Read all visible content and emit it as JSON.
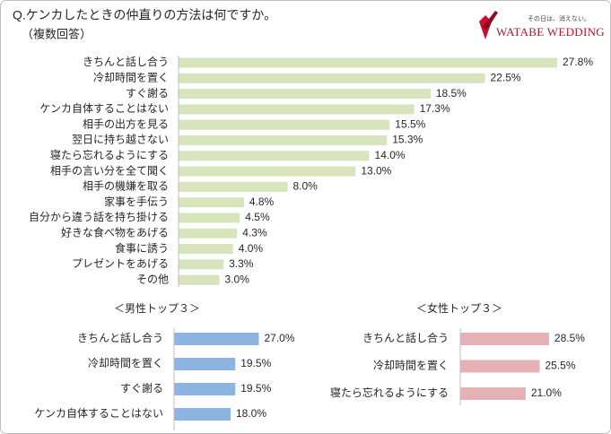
{
  "header": {
    "title": "Q.ケンカしたときの仲直りの方法は何ですか。",
    "subtitle": "（複数回答）",
    "logo_tagline": "その日は、消えない。",
    "logo_brand": "WATABE WEDDING"
  },
  "chart_data": [
    {
      "type": "bar",
      "orientation": "horizontal",
      "color": "#d7e4bc",
      "categories": [
        "きちんと話し合う",
        "冷却時間を置く",
        "すぐ謝る",
        "ケンカ自体することはない",
        "相手の出方を見る",
        "翌日に持ち越さない",
        "寝たら忘れるようにする",
        "相手の言い分を全て聞く",
        "相手の機嫌を取る",
        "家事を手伝う",
        "自分から違う話を持ち掛ける",
        "好きな食べ物をあげる",
        "食事に誘う",
        "プレゼントをあげる",
        "その他"
      ],
      "values": [
        27.8,
        22.5,
        18.5,
        17.3,
        15.5,
        15.3,
        14.0,
        13.0,
        8.0,
        4.8,
        4.5,
        4.3,
        4.0,
        3.3,
        3.0
      ],
      "value_labels": [
        "27.8%",
        "22.5%",
        "18.5%",
        "17.3%",
        "15.5%",
        "15.3%",
        "14.0%",
        "13.0%",
        "8.0%",
        "4.8%",
        "4.5%",
        "4.3%",
        "4.0%",
        "3.3%",
        "3.0%"
      ]
    },
    {
      "type": "bar",
      "orientation": "horizontal",
      "title": "＜男性トップ３＞",
      "color": "#8db3e2",
      "categories": [
        "きちんと話し合う",
        "冷却時間を置く",
        "すぐ謝る",
        "ケンカ自体することはない"
      ],
      "values": [
        27.0,
        19.5,
        19.5,
        18.0
      ],
      "value_labels": [
        "27.0%",
        "19.5%",
        "19.5%",
        "18.0%"
      ]
    },
    {
      "type": "bar",
      "orientation": "horizontal",
      "title": "＜女性トップ３＞",
      "color": "#e6b1b4",
      "categories": [
        "きちんと話し合う",
        "冷却時間を置く",
        "寝たら忘れるようにする"
      ],
      "values": [
        28.5,
        25.5,
        21.0
      ],
      "value_labels": [
        "28.5%",
        "25.5%",
        "21.0%"
      ]
    }
  ]
}
